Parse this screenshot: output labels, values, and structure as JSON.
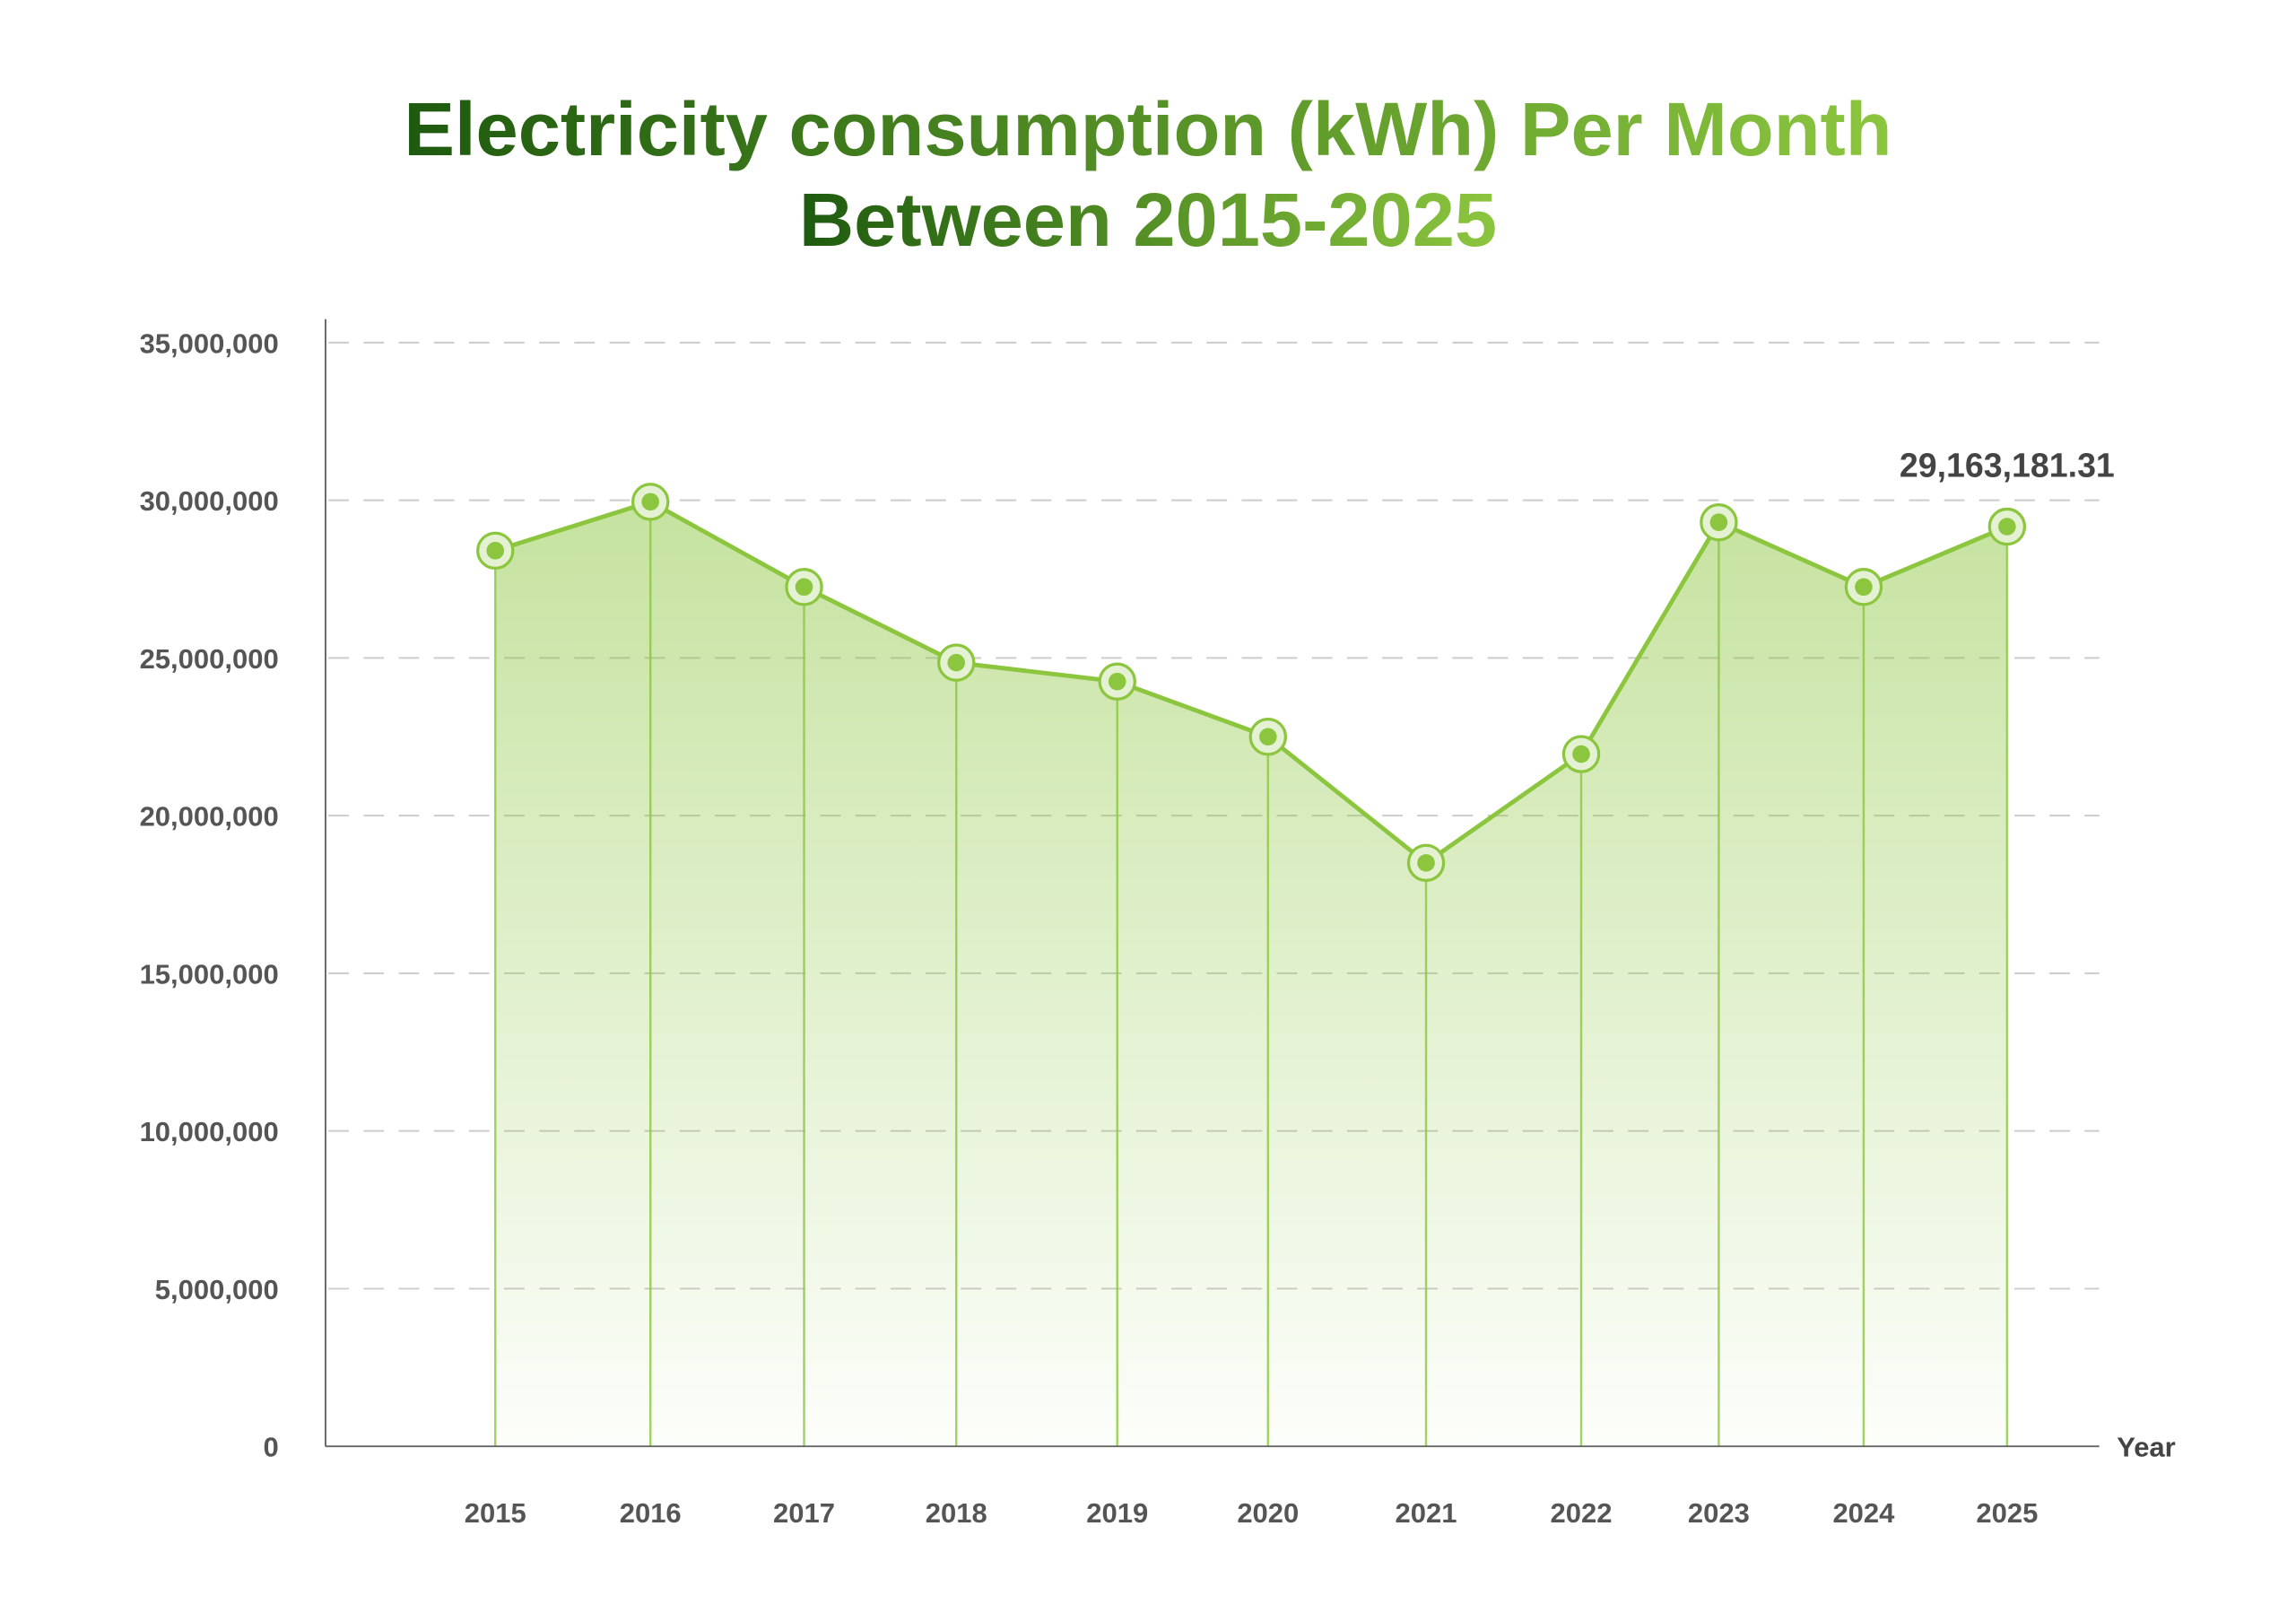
{
  "chart_data": {
    "type": "area",
    "title_line1": "Electricity consumption (kWh) Per Month",
    "title_line2": "Between 2015-2025",
    "xlabel": "Year",
    "ylabel": "",
    "categories": [
      "2015",
      "2016",
      "2017",
      "2018",
      "2019",
      "2020",
      "2021",
      "2022",
      "2023",
      "2024",
      "2025"
    ],
    "series": [
      {
        "name": "Electricity consumption (kWh)",
        "values": [
          28400000,
          29950000,
          27250000,
          24850000,
          24250000,
          22500000,
          18500000,
          21950000,
          29300000,
          27250000,
          29163181.31
        ]
      }
    ],
    "ylim": [
      0,
      35000000
    ],
    "yticks": [
      0,
      5000000,
      10000000,
      15000000,
      20000000,
      25000000,
      30000000,
      35000000
    ],
    "ytick_labels": [
      "0",
      "5,000,000",
      "10,000,000",
      "15,000,000",
      "20,000,000",
      "25,000,000",
      "30,000,000",
      "35,000,000"
    ],
    "grid": true,
    "annotation": "29,163,181.31",
    "colors": {
      "line": "#8cc63f",
      "title_start": "#1e5a0e",
      "title_end": "#8cc63f",
      "axis": "#666666",
      "grid": "#cccccc"
    }
  }
}
